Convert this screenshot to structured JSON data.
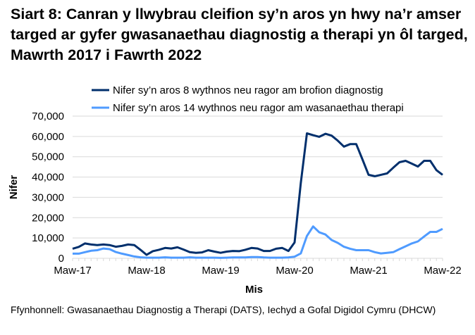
{
  "chart_data": {
    "type": "line",
    "title": "Siart 8: Canran y llwybrau cleifion sy’n aros yn hwy na’r amser targed ar gyfer gwasanaethau diagnostig a therapi yn ôl targed, Mawrth 2017 i Fawrth 2022",
    "xlabel": "Mis",
    "ylabel": "Nifer",
    "ylim": [
      0,
      70000
    ],
    "yticks": [
      "0",
      "10,000",
      "20,000",
      "30,000",
      "40,000",
      "50,000",
      "60,000",
      "70,000"
    ],
    "xticks": [
      "Maw-17",
      "Maw-18",
      "Maw-19",
      "Maw-20",
      "Maw-21",
      "Maw-22"
    ],
    "x_range": [
      "2017-03",
      "2022-03"
    ],
    "x_frequency": "monthly",
    "grid": true,
    "legend": "top",
    "series": [
      {
        "name": "Nifer sy’n aros 8 wythnos neu ragor am brofion diagnostig",
        "color": "#002f6c",
        "values": [
          4700,
          5600,
          7300,
          6800,
          6500,
          6800,
          6500,
          5700,
          6100,
          6800,
          6500,
          4200,
          1700,
          3500,
          4200,
          5100,
          4800,
          5400,
          4300,
          3000,
          2700,
          2900,
          4000,
          3300,
          2700,
          3300,
          3600,
          3500,
          4200,
          5100,
          4800,
          3600,
          3600,
          4700,
          5100,
          3600,
          7800,
          37000,
          61500,
          60600,
          59800,
          61300,
          60400,
          57900,
          55000,
          56200,
          56200,
          48700,
          41100,
          40400,
          41100,
          41800,
          44600,
          47300,
          48000,
          46600,
          45200,
          48000,
          48000,
          43400,
          41100
        ]
      },
      {
        "name": "Nifer sy’n aros 14 wythnos neu ragor am wasanaethau therapi",
        "color": "#4f9bff",
        "values": [
          2300,
          2300,
          3000,
          3700,
          4000,
          4800,
          4500,
          3100,
          2300,
          1600,
          900,
          500,
          300,
          300,
          300,
          500,
          300,
          300,
          300,
          500,
          300,
          300,
          300,
          300,
          200,
          300,
          400,
          400,
          400,
          600,
          600,
          400,
          300,
          300,
          300,
          400,
          800,
          2400,
          11000,
          15700,
          12800,
          11700,
          9000,
          7600,
          5700,
          4700,
          4000,
          4000,
          4000,
          3000,
          2400,
          2700,
          3000,
          4500,
          5900,
          7300,
          8300,
          10700,
          13000,
          13000,
          14500
        ]
      }
    ],
    "source": "Ffynhonnell: Gwasanaethau Diagnostig a Therapi (DATS), Iechyd a Gofal Digidol Cymru (DHCW)"
  }
}
